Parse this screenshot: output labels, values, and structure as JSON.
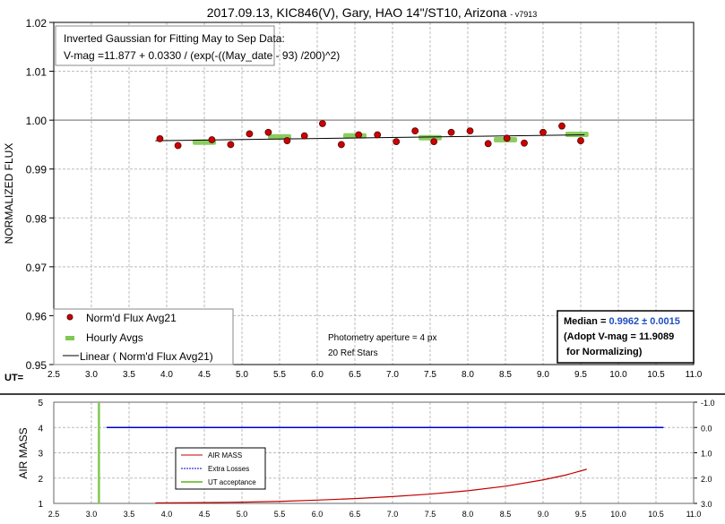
{
  "chart_data": [
    {
      "type": "scatter",
      "title": "2017.09.13, KIC846(V), Gary, HAO 14\"/ST10, Arizona",
      "title_suffix": "- v7913",
      "ylabel": "NORMALIZED FLUX",
      "xlabel": "UT=",
      "xlim": [
        2.5,
        11.0
      ],
      "ylim": [
        0.95,
        1.02
      ],
      "xticks": [
        "2.5",
        "3.0",
        "3.5",
        "4.0",
        "4.5",
        "5.0",
        "5.5",
        "6.0",
        "6.5",
        "7.0",
        "7.5",
        "8.0",
        "8.5",
        "9.0",
        "9.5",
        "10.0",
        "10.5",
        "11.0"
      ],
      "yticks": [
        "0.95",
        "0.96",
        "0.97",
        "0.98",
        "0.99",
        "1.00",
        "1.01",
        "1.02"
      ],
      "grid": true,
      "reference_line": 1.0,
      "legend_position": "bottom-left",
      "series": [
        {
          "name": "Norm'd Flux Avg21",
          "color": "#cc0000",
          "x": [
            3.91,
            4.15,
            4.6,
            4.85,
            5.1,
            5.35,
            5.6,
            5.83,
            6.07,
            6.32,
            6.55,
            6.8,
            7.05,
            7.3,
            7.55,
            7.78,
            8.03,
            8.27,
            8.52,
            8.75,
            9.0,
            9.25,
            9.5
          ],
          "y": [
            0.9962,
            0.9948,
            0.996,
            0.995,
            0.9972,
            0.9975,
            0.9958,
            0.9968,
            0.9993,
            0.995,
            0.997,
            0.997,
            0.9956,
            0.9978,
            0.9956,
            0.9975,
            0.9978,
            0.9952,
            0.9963,
            0.9953,
            0.9975,
            0.9988,
            0.9958
          ]
        },
        {
          "name": "Hourly Avgs",
          "color": "#80c850",
          "x": [
            4.5,
            5.5,
            6.5,
            7.5,
            8.5,
            9.45
          ],
          "y": [
            0.9955,
            0.9966,
            0.9968,
            0.9964,
            0.996,
            0.9971
          ]
        },
        {
          "name": "Linear ( Norm'd Flux Avg21)",
          "color": "#000000",
          "x": [
            3.85,
            9.55
          ],
          "y": [
            0.9958,
            0.997
          ]
        }
      ],
      "annotations": {
        "fit_line1": "Inverted Gaussian for Fitting May to Sep Data:",
        "fit_line2": "V-mag =11.877 + 0.0330 / (exp(-((May_date - 93) /200)^2)",
        "aperture": "Photometry aperture = 4 px",
        "ref_stars": "20 Ref Stars",
        "median_label": "Median = ",
        "median_value": "0.9962 ± 0.0015",
        "median_color": "#1f4fbf",
        "adopt": "(Adopt V-mag = 11.9089",
        "normalizing": " for Normalizing)"
      }
    },
    {
      "type": "line",
      "ylabel": "AIR MASS",
      "xlim": [
        2.5,
        11.0
      ],
      "ylim": [
        1,
        5
      ],
      "y2lim": [
        -1.0,
        3.0
      ],
      "xticks": [
        "2.5",
        "3.0",
        "3.5",
        "4.0",
        "4.5",
        "5.0",
        "5.5",
        "6.0",
        "6.5",
        "7.0",
        "7.5",
        "8.0",
        "8.5",
        "9.0",
        "9.5",
        "10.0",
        "10.5",
        "11.0"
      ],
      "yticks": [
        "1",
        "2",
        "3",
        "4",
        "5"
      ],
      "y2ticks": [
        "-1.0",
        "0.0",
        "1.0",
        "2.0",
        "3.0"
      ],
      "grid": true,
      "legend_position": "center-left",
      "series": [
        {
          "name": "AIR MASS",
          "color": "#c00000",
          "x": [
            3.85,
            4.5,
            5.0,
            5.5,
            6.0,
            6.5,
            7.0,
            7.5,
            8.0,
            8.5,
            9.0,
            9.3,
            9.58
          ],
          "y": [
            1.02,
            1.03,
            1.05,
            1.08,
            1.13,
            1.19,
            1.27,
            1.37,
            1.5,
            1.68,
            1.93,
            2.12,
            2.35
          ]
        },
        {
          "name": "Extra Losses",
          "color": "#0000cc",
          "axis": "right",
          "x": [
            3.2,
            10.6
          ],
          "y": [
            0.0,
            0.0
          ]
        },
        {
          "name": "UT acceptance",
          "color": "#80c850",
          "x": [
            3.1,
            3.1
          ],
          "y": [
            1,
            5
          ]
        }
      ]
    }
  ]
}
